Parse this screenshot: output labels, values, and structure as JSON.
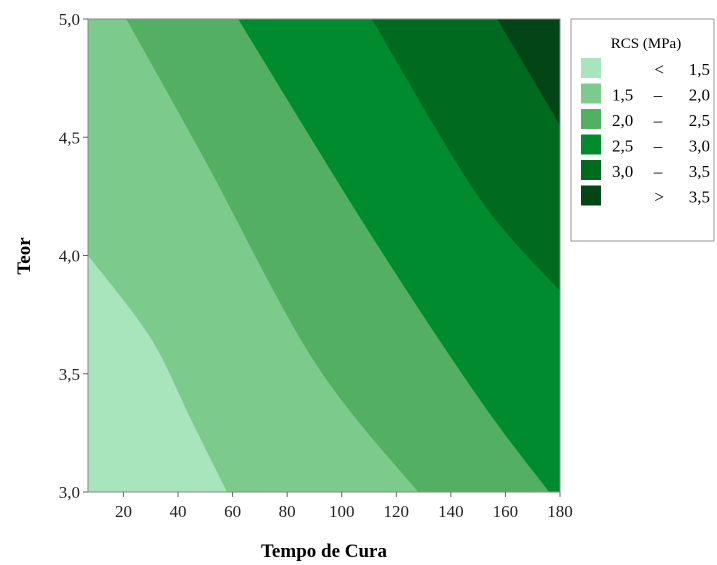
{
  "chart_data": {
    "type": "contour",
    "title": "",
    "xlabel": "Tempo de Cura",
    "ylabel": "Teor",
    "xlim": [
      7,
      180
    ],
    "ylim": [
      3.0,
      5.0
    ],
    "x_ticks": [
      20,
      40,
      60,
      80,
      100,
      120,
      140,
      160,
      180
    ],
    "x_tick_labels": [
      "20",
      "40",
      "60",
      "80",
      "100",
      "120",
      "140",
      "160",
      "180"
    ],
    "y_ticks": [
      3.0,
      3.5,
      4.0,
      4.5,
      5.0
    ],
    "y_tick_labels": [
      "3,0",
      "3,5",
      "4,0",
      "4,5",
      "5,0"
    ],
    "grid": false,
    "legend_position": "top-right",
    "legend": {
      "title": "RCS (MPa)",
      "entries": [
        {
          "left": "<",
          "right": "1,5",
          "color": "#a8e4bc"
        },
        {
          "left": "1,5",
          "dash": "–",
          "right": "2,0",
          "color": "#7ccb8d"
        },
        {
          "left": "2,0",
          "dash": "–",
          "right": "2,5",
          "color": "#53b062"
        },
        {
          "left": "2,5",
          "dash": "–",
          "right": "3,0",
          "color": "#008c2e"
        },
        {
          "left": "3,0",
          "dash": "–",
          "right": "3,5",
          "color": "#006b1f"
        },
        {
          "left": ">",
          "right": "3,5",
          "color": "#034516"
        }
      ]
    },
    "contour_boundaries": [
      {
        "level": 1.5,
        "points": [
          [
            7,
            4.0
          ],
          [
            30,
            3.65
          ],
          [
            45,
            3.3
          ],
          [
            58,
            3.0
          ]
        ]
      },
      {
        "level": 2.0,
        "points": [
          [
            21,
            5.0
          ],
          [
            50,
            4.4
          ],
          [
            90,
            3.55
          ],
          [
            128,
            3.0
          ]
        ]
      },
      {
        "level": 2.5,
        "points": [
          [
            62,
            5.0
          ],
          [
            110,
            4.1
          ],
          [
            150,
            3.4
          ],
          [
            176,
            3.0
          ]
        ]
      },
      {
        "level": 3.0,
        "points": [
          [
            111,
            5.0
          ],
          [
            150,
            4.25
          ],
          [
            180,
            3.85
          ]
        ]
      },
      {
        "level": 3.5,
        "points": [
          [
            157,
            5.0
          ],
          [
            180,
            4.55
          ]
        ]
      }
    ]
  }
}
